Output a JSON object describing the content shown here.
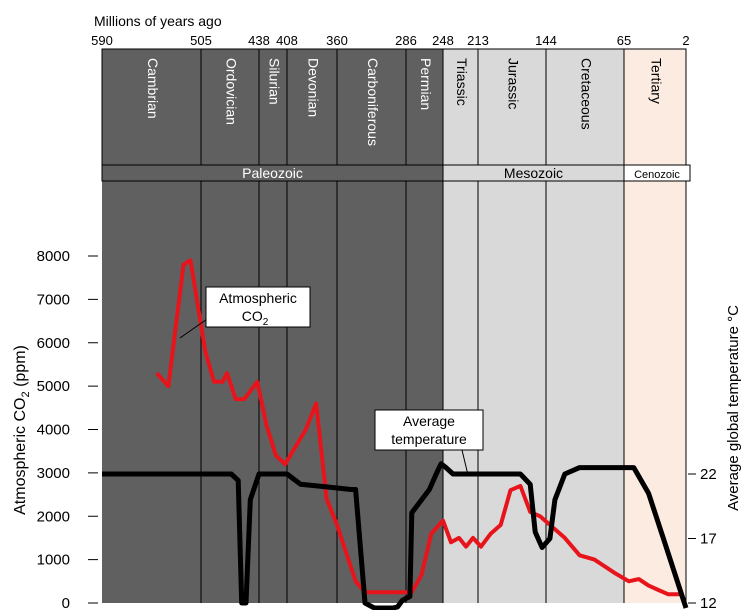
{
  "chart_data": {
    "type": "line",
    "time_axis_title": "Millions of years ago",
    "ylabel_left_prefix": "Atmospheric CO",
    "ylabel_left_sub": "2",
    "ylabel_left_suffix": " (ppm)",
    "ylabel_right": "Average global temperature °C",
    "x_ticks": [
      590,
      505,
      438,
      408,
      360,
      286,
      248,
      213,
      144,
      65,
      2
    ],
    "x_tick_labels": [
      "590",
      "505",
      "438",
      "408",
      "360",
      "286",
      "248",
      "213",
      "144",
      "65",
      "2"
    ],
    "periods": [
      {
        "name": "Cambrian",
        "start": 590,
        "end": 505,
        "era": "Paleozoic"
      },
      {
        "name": "Ordovician",
        "start": 505,
        "end": 438,
        "era": "Paleozoic"
      },
      {
        "name": "Silurian",
        "start": 438,
        "end": 408,
        "era": "Paleozoic"
      },
      {
        "name": "Devonian",
        "start": 408,
        "end": 360,
        "era": "Paleozoic"
      },
      {
        "name": "Carboniferous",
        "start": 360,
        "end": 286,
        "era": "Paleozoic"
      },
      {
        "name": "Permian",
        "start": 286,
        "end": 248,
        "era": "Paleozoic"
      },
      {
        "name": "Triassic",
        "start": 248,
        "end": 213,
        "era": "Mesozoic"
      },
      {
        "name": "Jurassic",
        "start": 213,
        "end": 144,
        "era": "Mesozoic"
      },
      {
        "name": "Cretaceous",
        "start": 144,
        "end": 65,
        "era": "Mesozoic"
      },
      {
        "name": "Tertiary",
        "start": 65,
        "end": 2,
        "era": "Cenozoic"
      }
    ],
    "eras": [
      {
        "name": "Paleozoic",
        "start": 590,
        "end": 248,
        "color": "#606060"
      },
      {
        "name": "Mesozoic",
        "start": 248,
        "end": 65,
        "color": "#d9d9d9"
      },
      {
        "name": "Cenozoic",
        "start": 65,
        "end": 2,
        "color": "#fcebe0"
      }
    ],
    "y_left": {
      "ticks": [
        0,
        1000,
        2000,
        3000,
        4000,
        5000,
        6000,
        7000,
        8000
      ],
      "ylim": [
        0,
        8000
      ]
    },
    "y_right": {
      "ticks": [
        12,
        17,
        22
      ],
      "ylim": [
        12,
        22
      ]
    },
    "series": [
      {
        "color": "#e8141b",
        "axis": "left",
        "points": [
          [
            543,
            5300
          ],
          [
            533,
            5000
          ],
          [
            520,
            7800
          ],
          [
            514,
            7900
          ],
          [
            500,
            5800
          ],
          [
            490,
            5100
          ],
          [
            480,
            5100
          ],
          [
            475,
            5300
          ],
          [
            465,
            4700
          ],
          [
            455,
            4700
          ],
          [
            440,
            5100
          ],
          [
            430,
            4100
          ],
          [
            420,
            3400
          ],
          [
            410,
            3200
          ],
          [
            390,
            4000
          ],
          [
            380,
            4600
          ],
          [
            370,
            2400
          ],
          [
            360,
            1800
          ],
          [
            340,
            500
          ],
          [
            330,
            250
          ],
          [
            300,
            250
          ],
          [
            290,
            250
          ],
          [
            280,
            250
          ],
          [
            270,
            650
          ],
          [
            260,
            1600
          ],
          [
            248,
            1900
          ],
          [
            240,
            1400
          ],
          [
            232,
            1500
          ],
          [
            225,
            1300
          ],
          [
            218,
            1500
          ],
          [
            210,
            1300
          ],
          [
            200,
            1600
          ],
          [
            190,
            1800
          ],
          [
            180,
            2600
          ],
          [
            170,
            2700
          ],
          [
            160,
            2100
          ],
          [
            150,
            2000
          ],
          [
            140,
            1800
          ],
          [
            125,
            1500
          ],
          [
            110,
            1100
          ],
          [
            95,
            1000
          ],
          [
            75,
            700
          ],
          [
            60,
            500
          ],
          [
            50,
            550
          ],
          [
            40,
            400
          ],
          [
            30,
            300
          ],
          [
            20,
            200
          ],
          [
            5,
            200
          ]
        ]
      },
      {
        "color": "#000000",
        "axis": "right",
        "points": [
          [
            590,
            22
          ],
          [
            520,
            22
          ],
          [
            470,
            22
          ],
          [
            462,
            21.5
          ],
          [
            458,
            12
          ],
          [
            453,
            12
          ],
          [
            448,
            20
          ],
          [
            438,
            22
          ],
          [
            408,
            22
          ],
          [
            395,
            21.2
          ],
          [
            370,
            21
          ],
          [
            345,
            20.8
          ],
          [
            340,
            20.8
          ],
          [
            330,
            12
          ],
          [
            320,
            11.5
          ],
          [
            300,
            11.5
          ],
          [
            295,
            11.7
          ],
          [
            290,
            12.2
          ],
          [
            282,
            12.5
          ],
          [
            280,
            19
          ],
          [
            262,
            20.8
          ],
          [
            255,
            22
          ],
          [
            250,
            22.8
          ],
          [
            245,
            22.5
          ],
          [
            238,
            22
          ],
          [
            210,
            22
          ],
          [
            180,
            22
          ],
          [
            170,
            22
          ],
          [
            160,
            21.2
          ],
          [
            155,
            17.5
          ],
          [
            148,
            16.3
          ],
          [
            140,
            17
          ],
          [
            135,
            20
          ],
          [
            125,
            22
          ],
          [
            110,
            22.5
          ],
          [
            80,
            22.5
          ],
          [
            65,
            22.5
          ],
          [
            55,
            22.5
          ],
          [
            40,
            20.5
          ],
          [
            25,
            17
          ],
          [
            2,
            11
          ]
        ]
      }
    ],
    "annotations": {
      "co2_line1": "Atmospheric",
      "co2_line2_prefix": "CO",
      "co2_line2_sub": "2",
      "temp_line1": "Average",
      "temp_line2": "temperature"
    },
    "grid": false,
    "legend": "none"
  }
}
